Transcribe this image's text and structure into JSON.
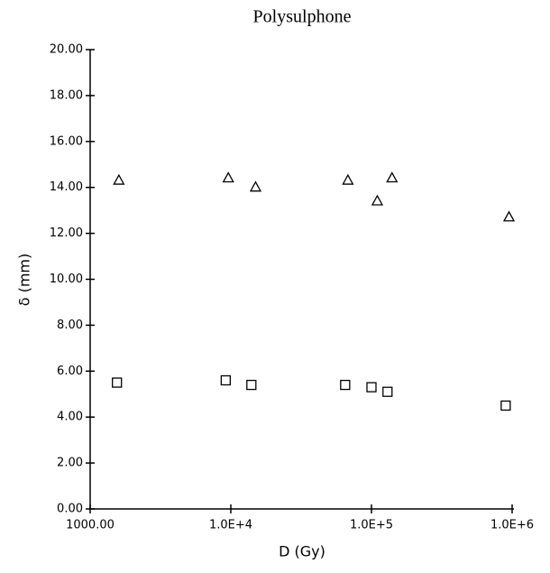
{
  "chart_data": {
    "type": "scatter",
    "title": "Polysulphone",
    "x_label": "D (Gy)",
    "y_label": "δ (mm)",
    "x_scale": "log",
    "xlim": [
      1000,
      1000000
    ],
    "xticks": [
      {
        "value": 1000,
        "label": "1000.00"
      },
      {
        "value": 10000,
        "label": "1.0E+4"
      },
      {
        "value": 100000,
        "label": "1.0E+5"
      },
      {
        "value": 1000000,
        "label": "1.0E+6"
      }
    ],
    "ylim": [
      0,
      20
    ],
    "yticks": [
      {
        "value": 0,
        "label": "0.00"
      },
      {
        "value": 2,
        "label": "2.00"
      },
      {
        "value": 4,
        "label": "4.00"
      },
      {
        "value": 6,
        "label": "6.00"
      },
      {
        "value": 8,
        "label": "8.00"
      },
      {
        "value": 10,
        "label": "10.00"
      },
      {
        "value": 12,
        "label": "12.00"
      },
      {
        "value": 14,
        "label": "14.00"
      },
      {
        "value": 16,
        "label": "16.00"
      },
      {
        "value": 18,
        "label": "18.00"
      },
      {
        "value": 20,
        "label": "20.00"
      }
    ],
    "series": [
      {
        "marker": "triangle",
        "color": "#000000",
        "x": [
          1600,
          9600,
          15000,
          68000,
          110000,
          140000,
          950000
        ],
        "values": [
          14.3,
          14.4,
          14.0,
          14.3,
          13.4,
          14.4,
          12.7
        ]
      },
      {
        "marker": "square",
        "color": "#000000",
        "x": [
          1550,
          9200,
          14000,
          65000,
          100000,
          130000,
          900000
        ],
        "values": [
          5.5,
          5.6,
          5.4,
          5.4,
          5.3,
          5.1,
          4.5
        ]
      }
    ]
  }
}
